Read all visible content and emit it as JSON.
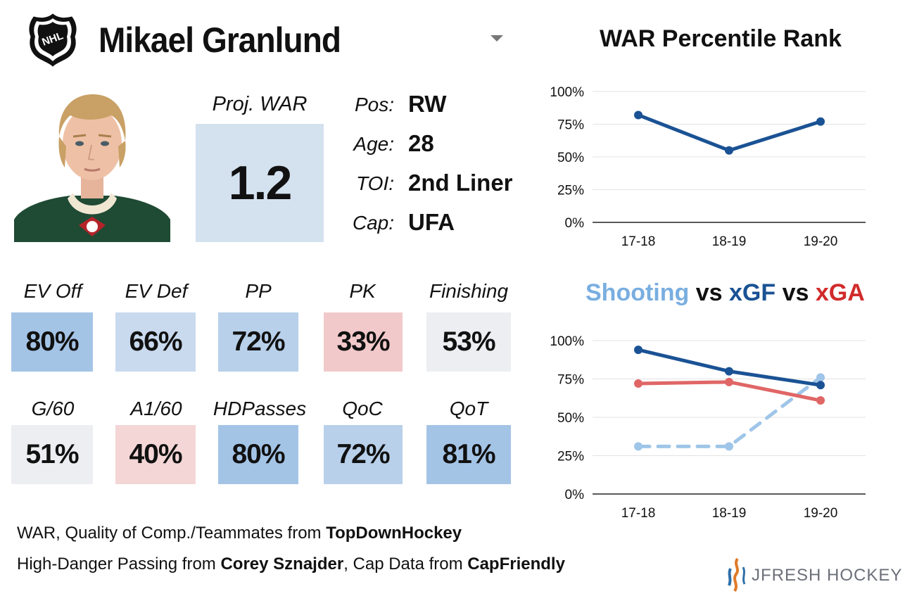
{
  "header": {
    "player_name": "Mikael Granlund",
    "logo_icon": "nhl-shield-icon",
    "dropdown_icon": "chevron-down-icon"
  },
  "proj_war": {
    "label": "Proj. WAR",
    "value": "1.2"
  },
  "info": [
    {
      "label": "Pos:",
      "value": "RW"
    },
    {
      "label": "Age:",
      "value": "28"
    },
    {
      "label": "TOI:",
      "value": "2nd Liner"
    },
    {
      "label": "Cap:",
      "value": "UFA"
    }
  ],
  "metrics": [
    {
      "label": "EV Off",
      "value": "80%",
      "color": "#a4c4e6"
    },
    {
      "label": "EV Def",
      "value": "66%",
      "color": "#c9daee"
    },
    {
      "label": "PP",
      "value": "72%",
      "color": "#b8d0ea"
    },
    {
      "label": "PK",
      "value": "33%",
      "color": "#f2c9ca"
    },
    {
      "label": "Finishing",
      "value": "53%",
      "color": "#eceef1"
    },
    {
      "label": "G/60",
      "value": "51%",
      "color": "#eceef1"
    },
    {
      "label": "A1/60",
      "value": "40%",
      "color": "#f4d6d7"
    },
    {
      "label": "HDPasses",
      "value": "80%",
      "color": "#a4c4e6"
    },
    {
      "label": "QoC",
      "value": "72%",
      "color": "#b8d0ea"
    },
    {
      "label": "QoT",
      "value": "81%",
      "color": "#a4c4e6"
    }
  ],
  "footer": {
    "line1_text": "WAR, Quality of Comp./Teammates from ",
    "line1_bold": "TopDownHockey",
    "line2_text_a": "High-Danger Passing from ",
    "line2_bold_a": "Corey Sznajder",
    "line2_text_b": ", Cap Data from ",
    "line2_bold_b": "CapFriendly",
    "brand": "JFRESH HOCKEY"
  },
  "chart_data": [
    {
      "type": "line",
      "title": "WAR Percentile Rank",
      "categories": [
        "17-18",
        "18-19",
        "19-20"
      ],
      "yticks": [
        "0%",
        "25%",
        "50%",
        "75%",
        "100%"
      ],
      "ylim": [
        0,
        100
      ],
      "grid": true,
      "series": [
        {
          "values": [
            82,
            55,
            77
          ],
          "color": "#1a5294",
          "dashed": false
        }
      ]
    },
    {
      "type": "line",
      "title_parts": [
        {
          "text": "Shooting",
          "color": "#79aee0"
        },
        {
          "text": " vs ",
          "color": "#111111"
        },
        {
          "text": "xGF",
          "color": "#1a5294"
        },
        {
          "text": " vs ",
          "color": "#111111"
        },
        {
          "text": "xGA",
          "color": "#d12b2b"
        }
      ],
      "categories": [
        "17-18",
        "18-19",
        "19-20"
      ],
      "yticks": [
        "0%",
        "25%",
        "50%",
        "75%",
        "100%"
      ],
      "ylim": [
        0,
        100
      ],
      "grid": true,
      "series": [
        {
          "name": "xGF",
          "values": [
            94,
            80,
            71
          ],
          "color": "#1a5294",
          "dashed": false
        },
        {
          "name": "xGA",
          "values": [
            72,
            73,
            61
          ],
          "color": "#e06666",
          "dashed": false
        },
        {
          "name": "Shooting",
          "values": [
            31,
            31,
            76
          ],
          "color": "#9fc5e8",
          "dashed": true
        }
      ]
    }
  ]
}
